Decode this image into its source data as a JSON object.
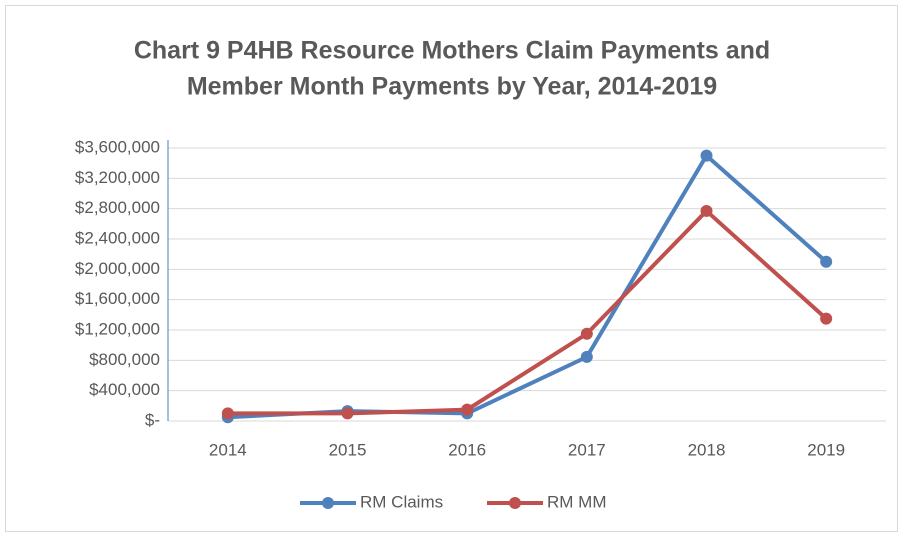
{
  "chart_data": {
    "type": "line",
    "title": [
      "Chart 9 P4HB Resource Mothers Claim Payments and",
      "Member Month Payments by Year, 2014-2019"
    ],
    "categories": [
      "2014",
      "2015",
      "2016",
      "2017",
      "2018",
      "2019"
    ],
    "series": [
      {
        "name": "RM Claims",
        "color": "#4f81bd",
        "values": [
          50000,
          130000,
          100000,
          845000,
          3500000,
          2100000
        ]
      },
      {
        "name": "RM MM",
        "color": "#c0504d",
        "values": [
          100000,
          100000,
          150000,
          1150000,
          2770000,
          1350000
        ]
      }
    ],
    "ylim": [
      0,
      3600000
    ],
    "yticks": [
      {
        "value": 0,
        "label": "$-"
      },
      {
        "value": 400000,
        "label": "$400,000"
      },
      {
        "value": 800000,
        "label": "$800,000"
      },
      {
        "value": 1200000,
        "label": "$1,200,000"
      },
      {
        "value": 1600000,
        "label": "$1,600,000"
      },
      {
        "value": 2000000,
        "label": "$2,000,000"
      },
      {
        "value": 2400000,
        "label": "$2,400,000"
      },
      {
        "value": 2800000,
        "label": "$2,800,000"
      },
      {
        "value": 3200000,
        "label": "$3,200,000"
      },
      {
        "value": 3600000,
        "label": "$3,600,000"
      }
    ],
    "grid": true,
    "legend": "bottom"
  }
}
